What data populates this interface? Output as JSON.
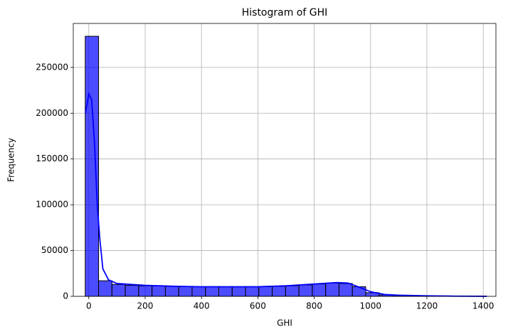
{
  "chart_data": {
    "type": "histogram",
    "title": "Histogram of GHI",
    "x_label": "GHI",
    "y_label": "Frequency",
    "bins": [
      -12.6,
      34.8,
      82.2,
      129.6,
      177,
      224.4,
      271.8,
      319.2,
      366.6,
      414,
      461.4,
      508.8,
      556.2,
      603.6,
      651,
      698.4,
      745.8,
      793.2,
      840.6,
      888,
      935.4,
      982.8,
      1030.2,
      1077.6,
      1125,
      1172.4,
      1219.8,
      1267.2,
      1314.6,
      1362,
      1409.4
    ],
    "counts": [
      284000,
      17000,
      13000,
      12000,
      11500,
      11500,
      11000,
      10500,
      10500,
      10500,
      10500,
      10500,
      10500,
      10500,
      11000,
      11500,
      12500,
      13500,
      14500,
      14000,
      10500,
      4000,
      1500,
      1000,
      700,
      500,
      400,
      300,
      200,
      100
    ],
    "color": "#0000ff",
    "edgecolor": "#000000",
    "kde": {
      "x": [
        -12,
        0,
        10,
        20,
        30,
        40,
        50,
        70,
        100,
        200,
        300,
        400,
        500,
        600,
        700,
        800,
        880,
        920,
        960,
        1000,
        1050,
        1100,
        1200,
        1300,
        1413
      ],
      "values": [
        200000,
        221000,
        215000,
        170000,
        100000,
        60000,
        30000,
        18000,
        14000,
        12000,
        11000,
        10500,
        10500,
        10500,
        11500,
        13500,
        15000,
        14500,
        10000,
        5000,
        2000,
        1200,
        600,
        200,
        50
      ],
      "color": "#0000ff"
    },
    "xlim": [
      -55,
      1445
    ],
    "ylim": [
      0,
      298000
    ],
    "xticks": [
      0,
      200,
      400,
      600,
      800,
      1000,
      1200,
      1400
    ],
    "yticks": [
      0,
      50000,
      100000,
      150000,
      200000,
      250000
    ],
    "grid": true
  }
}
